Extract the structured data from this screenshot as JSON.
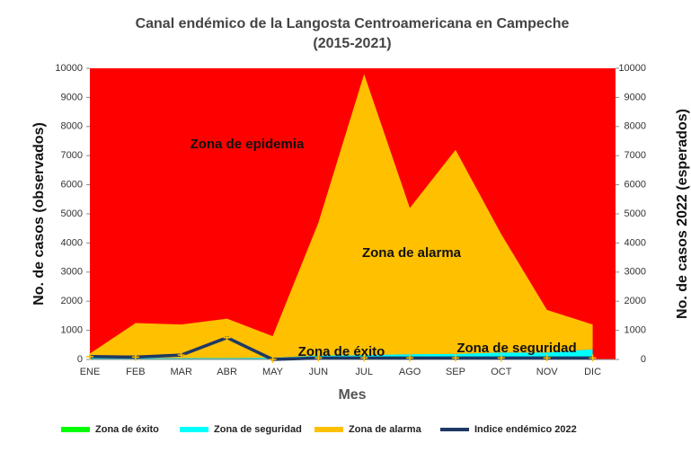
{
  "chart_data": {
    "type": "area",
    "title": "Canal endémico de la Langosta Centroamericana en Campeche",
    "subtitle": "(2015-2021)",
    "xlabel": "Mes",
    "ylabel": "No. de  casos (observados)",
    "y2label": "No. de casos 2022 (esperados)",
    "categories": [
      "ENE",
      "FEB",
      "MAR",
      "ABR",
      "MAY",
      "JUN",
      "JUL",
      "AGO",
      "SEP",
      "OCT",
      "NOV",
      "DIC"
    ],
    "stacked": true,
    "background_color": "#ff0000",
    "series": [
      {
        "name": "Zona de éxito",
        "color": "#00ff00",
        "values": [
          20,
          20,
          20,
          20,
          20,
          30,
          30,
          30,
          40,
          40,
          40,
          50
        ]
      },
      {
        "name": "Zona de seguridad",
        "color": "#00ffff",
        "values": [
          30,
          30,
          30,
          30,
          40,
          100,
          120,
          150,
          150,
          200,
          200,
          300
        ]
      },
      {
        "name": "Zona de alarma",
        "color": "#ffc000",
        "values": [
          150,
          1200,
          1150,
          1350,
          740,
          4570,
          9650,
          5020,
          7010,
          4060,
          1460,
          850
        ]
      },
      {
        "name": "Indice endémico 2022",
        "type": "line",
        "axis": "y2",
        "color": "#1f3864",
        "marker_color": "#ffc000",
        "values": [
          100,
          80,
          150,
          750,
          0,
          50,
          50,
          50,
          50,
          50,
          50,
          50
        ]
      }
    ],
    "annotations": [
      "Zona de epidemia",
      "Zona de alarma",
      "Zona de éxito",
      "Zona de seguridad"
    ],
    "ylim": [
      0,
      10000
    ],
    "yticks": [
      0,
      1000,
      2000,
      3000,
      4000,
      5000,
      6000,
      7000,
      8000,
      9000,
      10000
    ],
    "y2lim": [
      0,
      10000
    ],
    "y2ticks": [
      0,
      1000,
      2000,
      3000,
      4000,
      5000,
      6000,
      7000,
      8000,
      9000,
      10000
    ],
    "legend": "bottom"
  }
}
